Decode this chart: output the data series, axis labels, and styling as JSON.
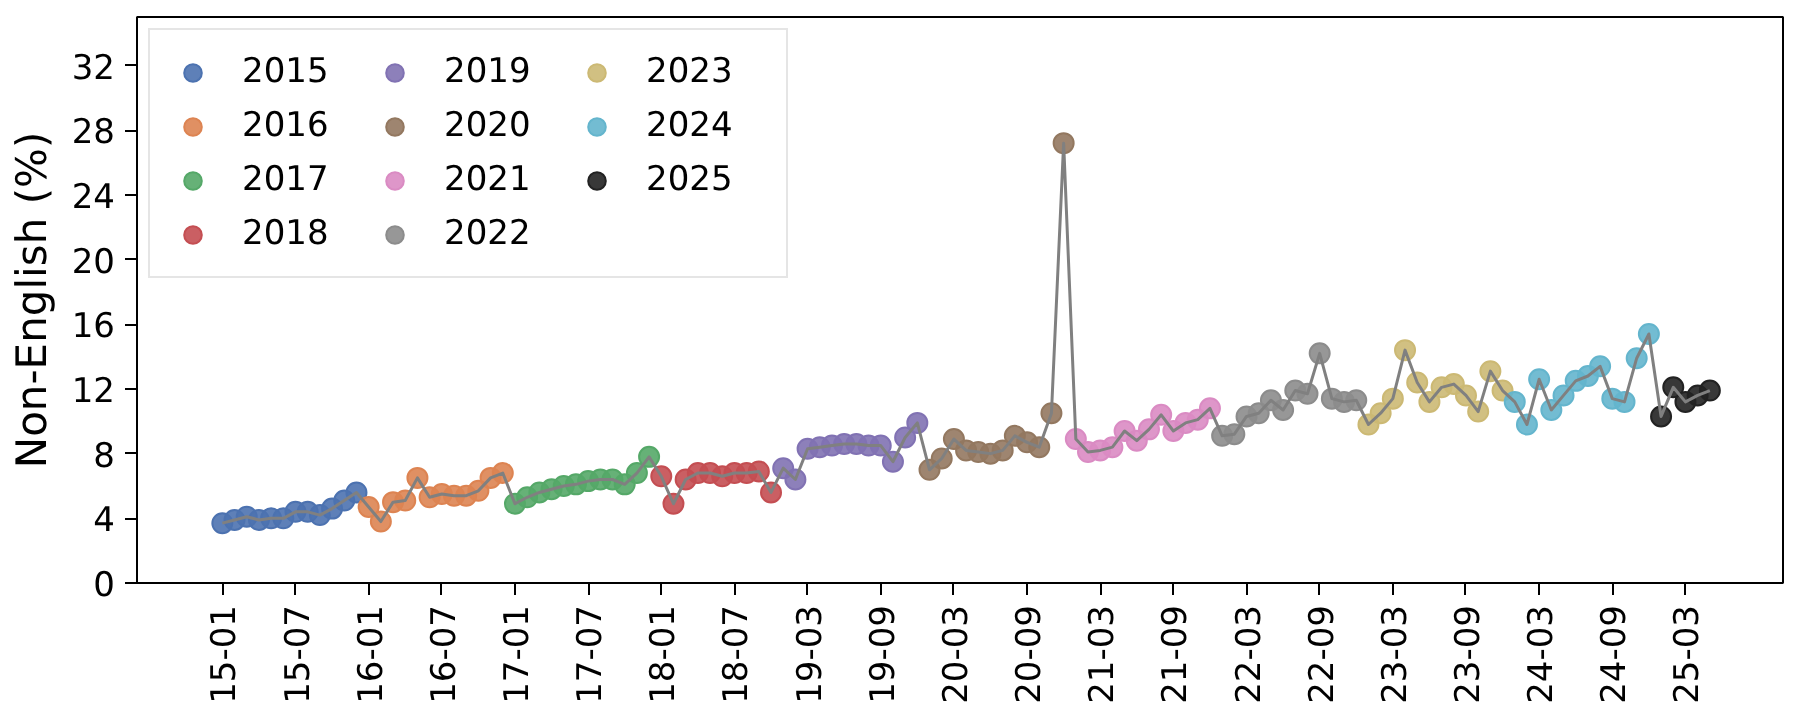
{
  "chart_data": {
    "type": "scatter",
    "ylabel": "Non-English (%)",
    "categories": [
      "15-01",
      null,
      null,
      null,
      null,
      null,
      "15-07",
      null,
      null,
      null,
      null,
      null,
      "16-01",
      null,
      null,
      null,
      null,
      null,
      "16-07",
      null,
      null,
      null,
      null,
      null,
      "17-01",
      null,
      null,
      null,
      null,
      null,
      "17-07",
      null,
      null,
      null,
      null,
      null,
      "18-01",
      null,
      null,
      null,
      null,
      null,
      "18-07",
      null,
      null,
      null,
      null,
      null,
      "19-03",
      null,
      null,
      null,
      null,
      null,
      "19-09",
      null,
      null,
      null,
      null,
      null,
      "20-03",
      null,
      null,
      null,
      null,
      null,
      "20-09",
      null,
      null,
      null,
      null,
      null,
      "21-03",
      null,
      null,
      null,
      null,
      null,
      "21-09",
      null,
      null,
      null,
      null,
      null,
      "22-03",
      null,
      null,
      null,
      null,
      null,
      "22-09",
      null,
      null,
      null,
      null,
      null,
      "23-03",
      null,
      null,
      null,
      null,
      null,
      "23-09",
      null,
      null,
      null,
      null,
      null,
      "24-03",
      null,
      null,
      null,
      null,
      null,
      "24-09",
      null,
      null,
      null,
      null,
      null,
      "25-03",
      null,
      null
    ],
    "ylim": [
      0,
      35
    ],
    "yticks": [
      0,
      4,
      8,
      12,
      16,
      20,
      24,
      28,
      32
    ],
    "grid": false,
    "legend": "top left",
    "marker": "circle",
    "series": [
      {
        "type": "line",
        "color": "#808080",
        "line_style": "solid",
        "marker": "none",
        "values": [
          3.7,
          3.9,
          4.1,
          3.9,
          4.0,
          4.0,
          4.4,
          4.4,
          4.2,
          4.6,
          5.1,
          5.6,
          4.7,
          3.8,
          5.0,
          5.1,
          6.5,
          5.3,
          5.5,
          5.4,
          5.4,
          5.7,
          6.5,
          6.8,
          4.9,
          5.3,
          5.6,
          5.8,
          6.0,
          6.1,
          6.3,
          6.4,
          6.4,
          6.1,
          6.8,
          7.8,
          6.6,
          4.9,
          6.4,
          6.8,
          6.8,
          6.6,
          6.8,
          6.8,
          6.9,
          5.6,
          7.1,
          6.4,
          8.3,
          8.4,
          8.5,
          8.6,
          8.6,
          8.5,
          8.5,
          7.5,
          9.0,
          9.9,
          7.0,
          7.7,
          8.9,
          8.2,
          8.1,
          8.0,
          8.2,
          9.1,
          8.7,
          8.4,
          10.5,
          27.2,
          8.9,
          8.1,
          8.2,
          8.4,
          9.4,
          8.8,
          9.5,
          10.4,
          9.4,
          9.9,
          10.1,
          10.8,
          9.1,
          9.2,
          10.3,
          10.5,
          11.3,
          10.7,
          11.9,
          11.7,
          14.2,
          11.4,
          11.2,
          11.3,
          9.8,
          10.5,
          11.4,
          14.4,
          12.4,
          11.2,
          12.1,
          12.3,
          11.6,
          10.6,
          13.1,
          11.9,
          11.2,
          9.8,
          12.6,
          10.7,
          11.6,
          12.5,
          12.8,
          13.4,
          11.4,
          11.2,
          13.9,
          15.4,
          10.3,
          12.1,
          11.2,
          11.6,
          11.9
        ]
      },
      {
        "name": "2015",
        "color": "#4c72b0",
        "values": [
          3.7,
          3.9,
          4.1,
          3.9,
          4.0,
          4.0,
          4.4,
          4.4,
          4.2,
          4.6,
          5.1,
          5.6,
          null,
          null,
          null,
          null,
          null,
          null,
          null,
          null,
          null,
          null,
          null,
          null,
          null,
          null,
          null,
          null,
          null,
          null,
          null,
          null,
          null,
          null,
          null,
          null,
          null,
          null,
          null,
          null,
          null,
          null,
          null,
          null,
          null,
          null,
          null,
          null,
          null,
          null,
          null,
          null,
          null,
          null,
          null,
          null,
          null,
          null,
          null,
          null,
          null,
          null,
          null,
          null,
          null,
          null,
          null,
          null,
          null,
          null,
          null,
          null,
          null,
          null,
          null,
          null,
          null,
          null,
          null,
          null,
          null,
          null,
          null,
          null,
          null,
          null,
          null,
          null,
          null,
          null,
          null,
          null,
          null,
          null,
          null,
          null,
          null,
          null,
          null,
          null,
          null,
          null,
          null,
          null,
          null,
          null,
          null,
          null,
          null,
          null,
          null,
          null,
          null,
          null,
          null,
          null,
          null,
          null,
          null,
          null,
          null,
          null,
          null
        ]
      },
      {
        "name": "2016",
        "color": "#dd8452",
        "values": [
          null,
          null,
          null,
          null,
          null,
          null,
          null,
          null,
          null,
          null,
          null,
          null,
          4.7,
          3.8,
          5.0,
          5.1,
          6.5,
          5.3,
          5.5,
          5.4,
          5.4,
          5.7,
          6.5,
          6.8,
          null,
          null,
          null,
          null,
          null,
          null,
          null,
          null,
          null,
          null,
          null,
          null,
          null,
          null,
          null,
          null,
          null,
          null,
          null,
          null,
          null,
          null,
          null,
          null,
          null,
          null,
          null,
          null,
          null,
          null,
          null,
          null,
          null,
          null,
          null,
          null,
          null,
          null,
          null,
          null,
          null,
          null,
          null,
          null,
          null,
          null,
          null,
          null,
          null,
          null,
          null,
          null,
          null,
          null,
          null,
          null,
          null,
          null,
          null,
          null,
          null,
          null,
          null,
          null,
          null,
          null,
          null,
          null,
          null,
          null,
          null,
          null,
          null,
          null,
          null,
          null,
          null,
          null,
          null,
          null,
          null,
          null,
          null,
          null,
          null,
          null,
          null,
          null,
          null,
          null,
          null,
          null,
          null,
          null,
          null,
          null,
          null,
          null,
          null
        ]
      },
      {
        "name": "2017",
        "color": "#55a868",
        "values": [
          null,
          null,
          null,
          null,
          null,
          null,
          null,
          null,
          null,
          null,
          null,
          null,
          null,
          null,
          null,
          null,
          null,
          null,
          null,
          null,
          null,
          null,
          null,
          null,
          4.9,
          5.3,
          5.6,
          5.8,
          6.0,
          6.1,
          6.3,
          6.4,
          6.4,
          6.1,
          6.8,
          7.8,
          null,
          null,
          null,
          null,
          null,
          null,
          null,
          null,
          null,
          null,
          null,
          null,
          null,
          null,
          null,
          null,
          null,
          null,
          null,
          null,
          null,
          null,
          null,
          null,
          null,
          null,
          null,
          null,
          null,
          null,
          null,
          null,
          null,
          null,
          null,
          null,
          null,
          null,
          null,
          null,
          null,
          null,
          null,
          null,
          null,
          null,
          null,
          null,
          null,
          null,
          null,
          null,
          null,
          null,
          null,
          null,
          null,
          null,
          null,
          null,
          null,
          null,
          null,
          null,
          null,
          null,
          null,
          null,
          null,
          null,
          null,
          null,
          null,
          null,
          null,
          null,
          null,
          null,
          null,
          null,
          null,
          null,
          null,
          null,
          null,
          null,
          null
        ]
      },
      {
        "name": "2018",
        "color": "#c44e52",
        "values": [
          null,
          null,
          null,
          null,
          null,
          null,
          null,
          null,
          null,
          null,
          null,
          null,
          null,
          null,
          null,
          null,
          null,
          null,
          null,
          null,
          null,
          null,
          null,
          null,
          null,
          null,
          null,
          null,
          null,
          null,
          null,
          null,
          null,
          null,
          null,
          null,
          6.6,
          4.9,
          6.4,
          6.8,
          6.8,
          6.6,
          6.8,
          6.8,
          6.9,
          5.6,
          null,
          null,
          null,
          null,
          null,
          null,
          null,
          null,
          null,
          null,
          null,
          null,
          null,
          null,
          null,
          null,
          null,
          null,
          null,
          null,
          null,
          null,
          null,
          null,
          null,
          null,
          null,
          null,
          null,
          null,
          null,
          null,
          null,
          null,
          null,
          null,
          null,
          null,
          null,
          null,
          null,
          null,
          null,
          null,
          null,
          null,
          null,
          null,
          null,
          null,
          null,
          null,
          null,
          null,
          null,
          null,
          null,
          null,
          null,
          null,
          null,
          null,
          null,
          null,
          null,
          null,
          null,
          null,
          null,
          null,
          null,
          null,
          null,
          null,
          null,
          null,
          null
        ]
      },
      {
        "name": "2019",
        "color": "#8172b3",
        "values": [
          null,
          null,
          null,
          null,
          null,
          null,
          null,
          null,
          null,
          null,
          null,
          null,
          null,
          null,
          null,
          null,
          null,
          null,
          null,
          null,
          null,
          null,
          null,
          null,
          null,
          null,
          null,
          null,
          null,
          null,
          null,
          null,
          null,
          null,
          null,
          null,
          null,
          null,
          null,
          null,
          null,
          null,
          null,
          null,
          null,
          null,
          7.1,
          6.4,
          8.3,
          8.4,
          8.5,
          8.6,
          8.6,
          8.5,
          8.5,
          7.5,
          9.0,
          9.9,
          null,
          null,
          null,
          null,
          null,
          null,
          null,
          null,
          null,
          null,
          null,
          null,
          null,
          null,
          null,
          null,
          null,
          null,
          null,
          null,
          null,
          null,
          null,
          null,
          null,
          null,
          null,
          null,
          null,
          null,
          null,
          null,
          null,
          null,
          null,
          null,
          null,
          null,
          null,
          null,
          null,
          null,
          null,
          null,
          null,
          null,
          null,
          null,
          null,
          null,
          null,
          null,
          null,
          null,
          null,
          null,
          null,
          null,
          null,
          null,
          null,
          null,
          null,
          null,
          null
        ]
      },
      {
        "name": "2020",
        "color": "#937860",
        "values": [
          null,
          null,
          null,
          null,
          null,
          null,
          null,
          null,
          null,
          null,
          null,
          null,
          null,
          null,
          null,
          null,
          null,
          null,
          null,
          null,
          null,
          null,
          null,
          null,
          null,
          null,
          null,
          null,
          null,
          null,
          null,
          null,
          null,
          null,
          null,
          null,
          null,
          null,
          null,
          null,
          null,
          null,
          null,
          null,
          null,
          null,
          null,
          null,
          null,
          null,
          null,
          null,
          null,
          null,
          null,
          null,
          null,
          null,
          7.0,
          7.7,
          8.9,
          8.2,
          8.1,
          8.0,
          8.2,
          9.1,
          8.7,
          8.4,
          10.5,
          27.2,
          null,
          null,
          null,
          null,
          null,
          null,
          null,
          null,
          null,
          null,
          null,
          null,
          null,
          null,
          null,
          null,
          null,
          null,
          null,
          null,
          null,
          null,
          null,
          null,
          null,
          null,
          null,
          null,
          null,
          null,
          null,
          null,
          null,
          null,
          null,
          null,
          null,
          null,
          null,
          null,
          null,
          null,
          null,
          null,
          null,
          null,
          null,
          null,
          null,
          null,
          null,
          null,
          null
        ]
      },
      {
        "name": "2021",
        "color": "#da8bc3",
        "values": [
          null,
          null,
          null,
          null,
          null,
          null,
          null,
          null,
          null,
          null,
          null,
          null,
          null,
          null,
          null,
          null,
          null,
          null,
          null,
          null,
          null,
          null,
          null,
          null,
          null,
          null,
          null,
          null,
          null,
          null,
          null,
          null,
          null,
          null,
          null,
          null,
          null,
          null,
          null,
          null,
          null,
          null,
          null,
          null,
          null,
          null,
          null,
          null,
          null,
          null,
          null,
          null,
          null,
          null,
          null,
          null,
          null,
          null,
          null,
          null,
          null,
          null,
          null,
          null,
          null,
          null,
          null,
          null,
          null,
          null,
          8.9,
          8.1,
          8.2,
          8.4,
          9.4,
          8.8,
          9.5,
          10.4,
          9.4,
          9.9,
          10.1,
          10.8,
          null,
          null,
          null,
          null,
          null,
          null,
          null,
          null,
          null,
          null,
          null,
          null,
          null,
          null,
          null,
          null,
          null,
          null,
          null,
          null,
          null,
          null,
          null,
          null,
          null,
          null,
          null,
          null,
          null,
          null,
          null,
          null,
          null,
          null,
          null,
          null,
          null,
          null,
          null,
          null,
          null
        ]
      },
      {
        "name": "2022",
        "color": "#8c8c8c",
        "values": [
          null,
          null,
          null,
          null,
          null,
          null,
          null,
          null,
          null,
          null,
          null,
          null,
          null,
          null,
          null,
          null,
          null,
          null,
          null,
          null,
          null,
          null,
          null,
          null,
          null,
          null,
          null,
          null,
          null,
          null,
          null,
          null,
          null,
          null,
          null,
          null,
          null,
          null,
          null,
          null,
          null,
          null,
          null,
          null,
          null,
          null,
          null,
          null,
          null,
          null,
          null,
          null,
          null,
          null,
          null,
          null,
          null,
          null,
          null,
          null,
          null,
          null,
          null,
          null,
          null,
          null,
          null,
          null,
          null,
          null,
          null,
          null,
          null,
          null,
          null,
          null,
          null,
          null,
          null,
          null,
          null,
          null,
          9.1,
          9.2,
          10.3,
          10.5,
          11.3,
          10.7,
          11.9,
          11.7,
          14.2,
          11.4,
          11.2,
          11.3,
          null,
          null,
          null,
          null,
          null,
          null,
          null,
          null,
          null,
          null,
          null,
          null,
          null,
          null,
          null,
          null,
          null,
          null,
          null,
          null,
          null,
          null,
          null,
          null,
          null,
          null,
          null,
          null,
          null
        ]
      },
      {
        "name": "2023",
        "color": "#ccb974",
        "values": [
          null,
          null,
          null,
          null,
          null,
          null,
          null,
          null,
          null,
          null,
          null,
          null,
          null,
          null,
          null,
          null,
          null,
          null,
          null,
          null,
          null,
          null,
          null,
          null,
          null,
          null,
          null,
          null,
          null,
          null,
          null,
          null,
          null,
          null,
          null,
          null,
          null,
          null,
          null,
          null,
          null,
          null,
          null,
          null,
          null,
          null,
          null,
          null,
          null,
          null,
          null,
          null,
          null,
          null,
          null,
          null,
          null,
          null,
          null,
          null,
          null,
          null,
          null,
          null,
          null,
          null,
          null,
          null,
          null,
          null,
          null,
          null,
          null,
          null,
          null,
          null,
          null,
          null,
          null,
          null,
          null,
          null,
          null,
          null,
          null,
          null,
          null,
          null,
          null,
          null,
          null,
          null,
          null,
          null,
          9.8,
          10.5,
          11.4,
          14.4,
          12.4,
          11.2,
          12.1,
          12.3,
          11.6,
          10.6,
          13.1,
          11.9,
          null,
          null,
          null,
          null,
          null,
          null,
          null,
          null,
          null,
          null,
          null,
          null,
          null,
          null,
          null,
          null,
          null
        ]
      },
      {
        "name": "2024",
        "color": "#64b5cd",
        "values": [
          null,
          null,
          null,
          null,
          null,
          null,
          null,
          null,
          null,
          null,
          null,
          null,
          null,
          null,
          null,
          null,
          null,
          null,
          null,
          null,
          null,
          null,
          null,
          null,
          null,
          null,
          null,
          null,
          null,
          null,
          null,
          null,
          null,
          null,
          null,
          null,
          null,
          null,
          null,
          null,
          null,
          null,
          null,
          null,
          null,
          null,
          null,
          null,
          null,
          null,
          null,
          null,
          null,
          null,
          null,
          null,
          null,
          null,
          null,
          null,
          null,
          null,
          null,
          null,
          null,
          null,
          null,
          null,
          null,
          null,
          null,
          null,
          null,
          null,
          null,
          null,
          null,
          null,
          null,
          null,
          null,
          null,
          null,
          null,
          null,
          null,
          null,
          null,
          null,
          null,
          null,
          null,
          null,
          null,
          null,
          null,
          null,
          null,
          null,
          null,
          null,
          null,
          null,
          null,
          null,
          null,
          11.2,
          9.8,
          12.6,
          10.7,
          11.6,
          12.5,
          12.8,
          13.4,
          11.4,
          11.2,
          13.9,
          15.4,
          null,
          null,
          null,
          null,
          null
        ]
      },
      {
        "name": "2025",
        "color": "#222222",
        "values": [
          null,
          null,
          null,
          null,
          null,
          null,
          null,
          null,
          null,
          null,
          null,
          null,
          null,
          null,
          null,
          null,
          null,
          null,
          null,
          null,
          null,
          null,
          null,
          null,
          null,
          null,
          null,
          null,
          null,
          null,
          null,
          null,
          null,
          null,
          null,
          null,
          null,
          null,
          null,
          null,
          null,
          null,
          null,
          null,
          null,
          null,
          null,
          null,
          null,
          null,
          null,
          null,
          null,
          null,
          null,
          null,
          null,
          null,
          null,
          null,
          null,
          null,
          null,
          null,
          null,
          null,
          null,
          null,
          null,
          null,
          null,
          null,
          null,
          null,
          null,
          null,
          null,
          null,
          null,
          null,
          null,
          null,
          null,
          null,
          null,
          null,
          null,
          null,
          null,
          null,
          null,
          null,
          null,
          null,
          null,
          null,
          null,
          null,
          null,
          null,
          null,
          null,
          null,
          null,
          null,
          null,
          null,
          null,
          null,
          null,
          null,
          null,
          null,
          null,
          null,
          null,
          null,
          null,
          10.3,
          12.1,
          11.2,
          11.6,
          11.9
        ]
      }
    ]
  }
}
